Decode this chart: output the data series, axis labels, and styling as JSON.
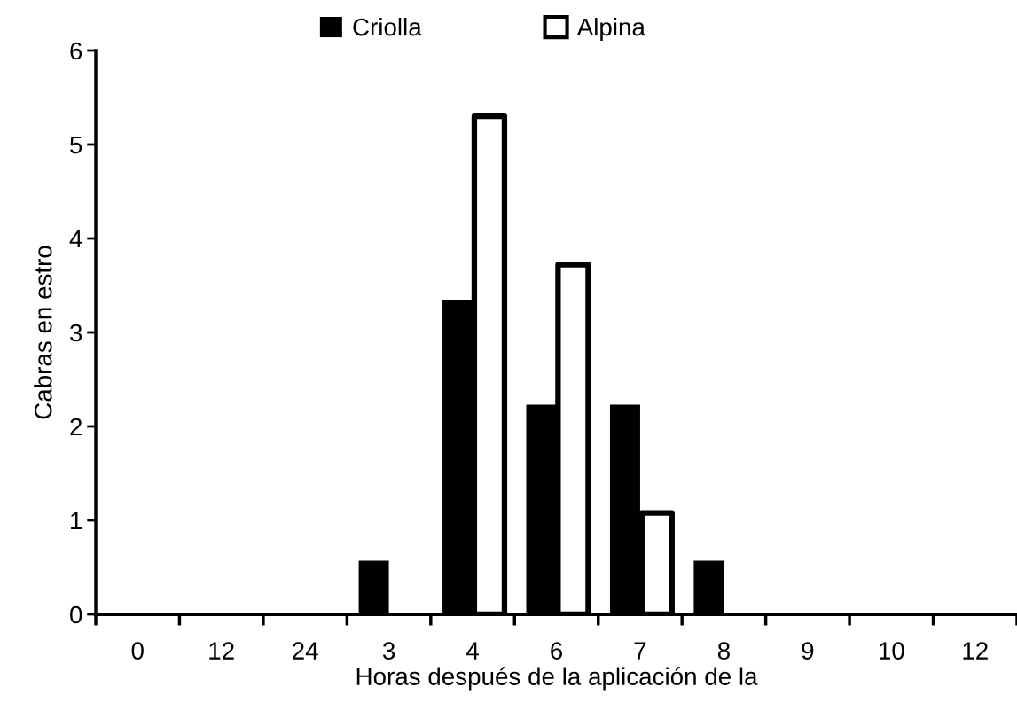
{
  "chart_data": {
    "type": "bar",
    "xlabel": "Horas después de la aplicación de la",
    "ylabel": "Cabras en estro",
    "categories": [
      "0",
      "12",
      "24",
      "3",
      "4",
      "6",
      "7",
      "8",
      "9",
      "10",
      "12"
    ],
    "series": [
      {
        "name": "Criolla",
        "color": "#000000",
        "values": [
          0,
          0,
          0,
          0.57,
          3.35,
          2.23,
          2.23,
          0.57,
          0,
          0,
          0
        ]
      },
      {
        "name": "Alpina",
        "color": "#ffffff",
        "values": [
          0,
          0,
          0,
          0,
          5.3,
          3.72,
          1.08,
          0,
          0,
          0,
          0
        ]
      }
    ],
    "ylim": [
      0,
      6
    ],
    "yticks": [
      0,
      1,
      2,
      3,
      4,
      5,
      6
    ],
    "grid": false,
    "legend": "top"
  }
}
